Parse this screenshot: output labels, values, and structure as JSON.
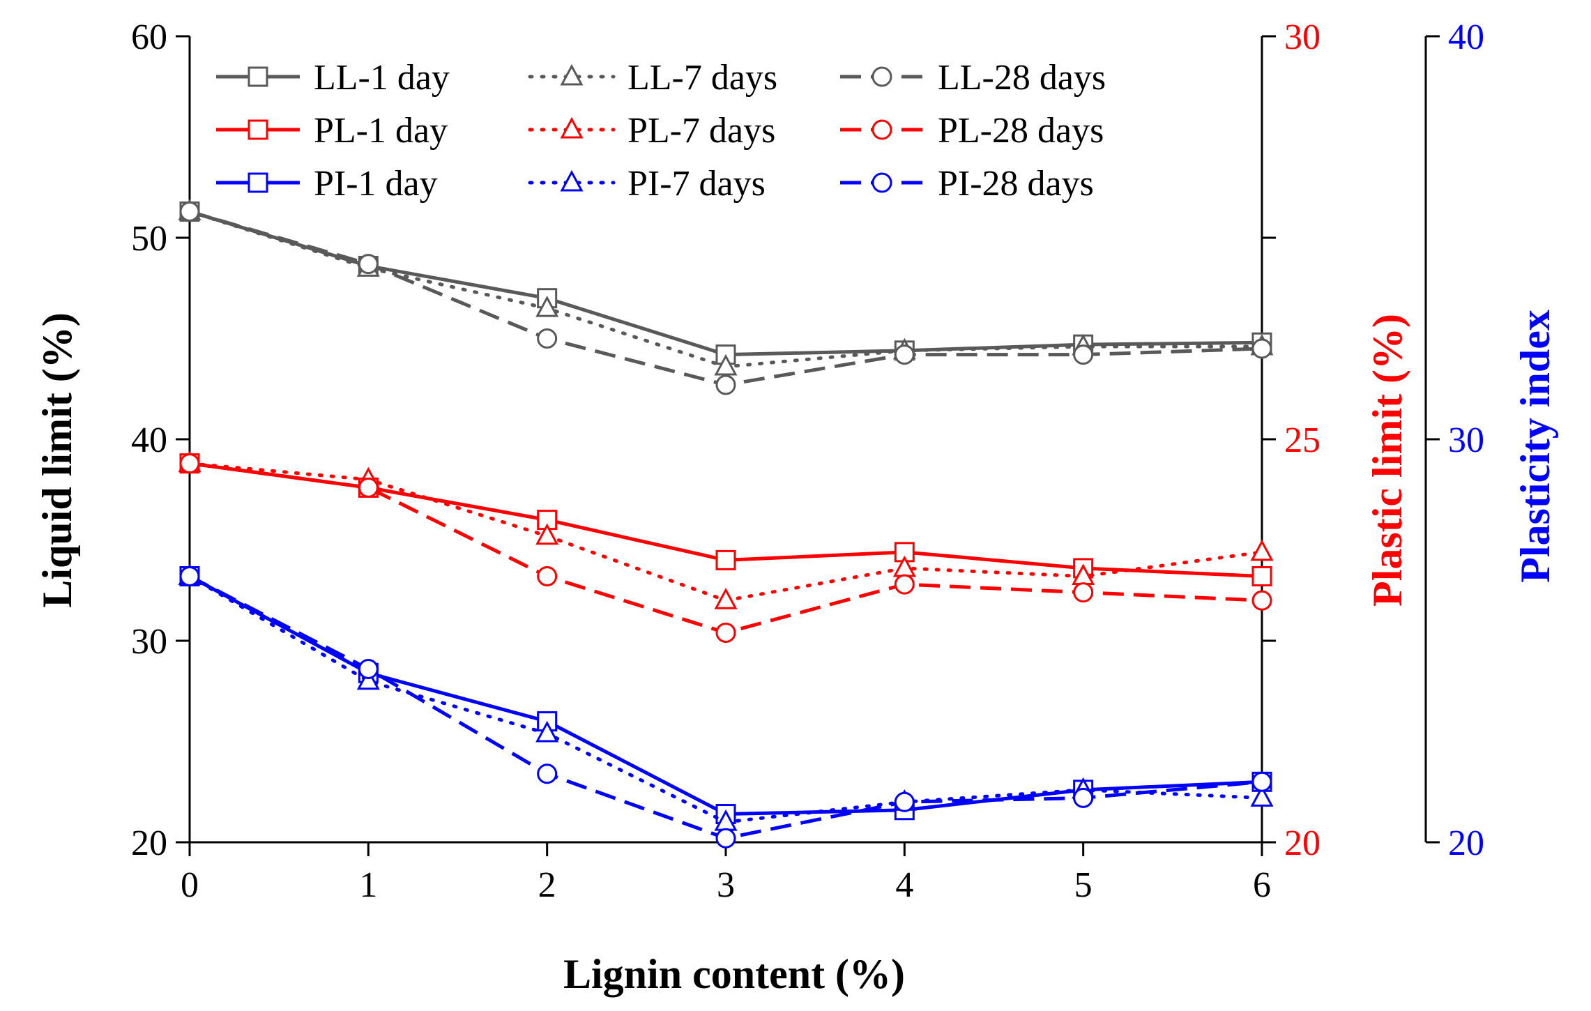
{
  "chart_data": {
    "type": "line",
    "x": [
      0,
      1,
      2,
      3,
      4,
      5,
      6
    ],
    "xlabel": "Lignin content (%)",
    "xlim": [
      0,
      6
    ],
    "x_ticks": [
      "0",
      "1",
      "2",
      "3",
      "4",
      "5",
      "6"
    ],
    "axes": {
      "left": {
        "label": "Liquid limit (%)",
        "range": [
          20,
          60
        ],
        "ticks": [
          "20",
          "30",
          "40",
          "50",
          "60"
        ],
        "color": "#000000"
      },
      "right1": {
        "label": "Plastic limit (%)",
        "range": [
          20,
          30
        ],
        "ticks": [
          "20",
          "25",
          "30"
        ],
        "color": "#ff0000"
      },
      "right2": {
        "label": "Plasticity index",
        "range": [
          20,
          40
        ],
        "ticks": [
          "20",
          "30",
          "40"
        ],
        "color": "#0000ff"
      }
    },
    "series": [
      {
        "name": "LL-1 day",
        "axis": "left",
        "color": "#595959",
        "dash": "solid",
        "marker": "square",
        "values": [
          51.3,
          48.6,
          47.0,
          44.2,
          44.4,
          44.7,
          44.8
        ]
      },
      {
        "name": "LL-7 days",
        "axis": "left",
        "color": "#595959",
        "dash": "dotted",
        "marker": "triangle",
        "values": [
          51.3,
          48.5,
          46.5,
          43.6,
          44.4,
          44.6,
          44.6
        ]
      },
      {
        "name": "LL-28 days",
        "axis": "left",
        "color": "#595959",
        "dash": "dashed",
        "marker": "circle",
        "values": [
          51.3,
          48.7,
          45.0,
          42.7,
          44.2,
          44.2,
          44.5
        ]
      },
      {
        "name": "PL-1 day",
        "axis": "right1",
        "color": "#ff0000",
        "dash": "solid",
        "marker": "square",
        "values": [
          24.7,
          24.4,
          24.0,
          23.5,
          23.6,
          23.4,
          23.3
        ]
      },
      {
        "name": "PL-7 days",
        "axis": "right1",
        "color": "#ff0000",
        "dash": "dotted",
        "marker": "triangle",
        "values": [
          24.7,
          24.5,
          23.8,
          23.0,
          23.4,
          23.3,
          23.6
        ]
      },
      {
        "name": "PL-28 days",
        "axis": "right1",
        "color": "#ff0000",
        "dash": "dashed",
        "marker": "circle",
        "values": [
          24.7,
          24.4,
          23.3,
          22.6,
          23.2,
          23.1,
          23.0
        ]
      },
      {
        "name": "PI-1 day",
        "axis": "right2",
        "color": "#0000ff",
        "dash": "solid",
        "marker": "square",
        "values": [
          26.6,
          24.2,
          23.0,
          20.7,
          20.8,
          21.3,
          21.5
        ]
      },
      {
        "name": "PI-7 days",
        "axis": "right2",
        "color": "#0000ff",
        "dash": "dotted",
        "marker": "triangle",
        "values": [
          26.6,
          24.0,
          22.7,
          20.5,
          21.0,
          21.3,
          21.1
        ]
      },
      {
        "name": "PI-28 days",
        "axis": "right2",
        "color": "#0000ff",
        "dash": "dashed",
        "marker": "circle",
        "values": [
          26.6,
          24.3,
          21.7,
          20.1,
          21.0,
          21.1,
          21.5
        ]
      }
    ],
    "legend": {
      "placement": "top",
      "columns": 3,
      "rows": [
        [
          "LL-1 day",
          "LL-7 days",
          "LL-28 days"
        ],
        [
          "PL-1 day",
          "PL-7 days",
          "PL-28 days"
        ],
        [
          "PI-1 day",
          "PI-7 days",
          "PI-28 days"
        ]
      ]
    },
    "grid": false
  }
}
